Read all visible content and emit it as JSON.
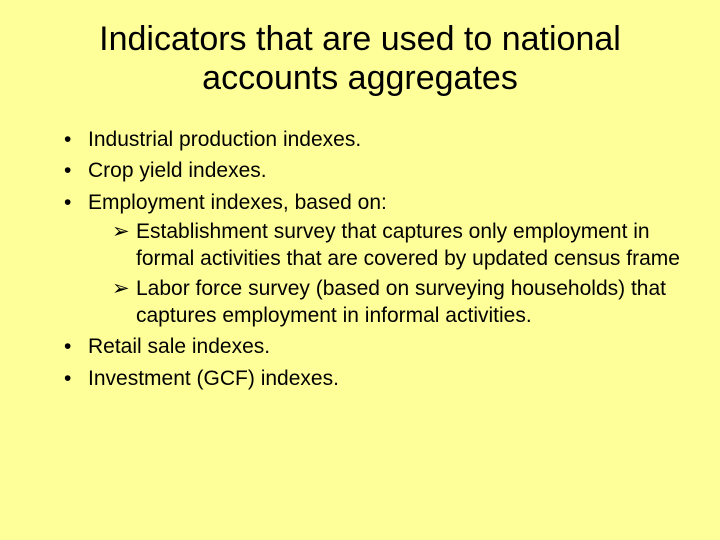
{
  "slide": {
    "background_color": "#ffff99",
    "text_color": "#000000",
    "title": "Indicators that are used to national accounts aggregates",
    "title_fontsize": 34,
    "body_fontsize": 21,
    "bullets": [
      {
        "text": "Industrial production indexes."
      },
      {
        "text": "Crop yield indexes."
      },
      {
        "text": "Employment indexes, based on:",
        "subitems": [
          "Establishment survey that captures only employment in formal activities that are covered by updated census frame",
          "Labor force survey (based on surveying households) that captures employment in informal activities."
        ]
      },
      {
        "text": "Retail sale indexes."
      },
      {
        "text": "Investment (GCF) indexes."
      }
    ]
  }
}
